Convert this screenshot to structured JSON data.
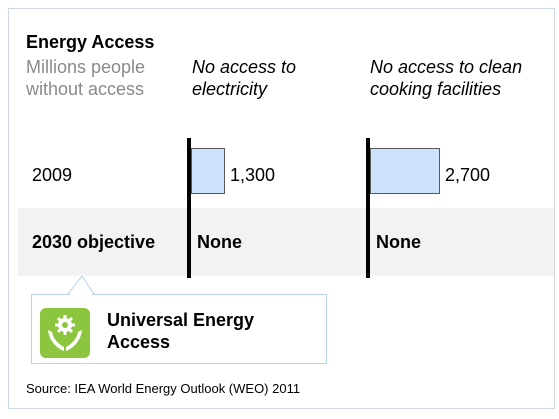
{
  "chart_data": {
    "type": "bar",
    "title": "Energy Access",
    "subtitle": "Millions people without access",
    "columns": [
      {
        "header": "No access to electricity"
      },
      {
        "header": "No access to clean cooking facilities"
      }
    ],
    "categories": [
      "2009",
      "2030 objective"
    ],
    "series": [
      {
        "name": "No access to electricity",
        "values": [
          1300,
          null
        ],
        "labels": [
          "1,300",
          "None"
        ]
      },
      {
        "name": "No access to clean cooking facilities",
        "values": [
          2700,
          null
        ],
        "labels": [
          "2,700",
          "None"
        ]
      }
    ],
    "source": "Source: IEA World Energy Outlook (WEO) 2011"
  },
  "callout": {
    "text_line1": "Universal Energy",
    "text_line2": "Access",
    "icon": "gear-hands-icon"
  },
  "colors": {
    "bar_fill": "#cce2fb",
    "icon_green": "#8cc63f",
    "band": "#f2f2f2"
  }
}
